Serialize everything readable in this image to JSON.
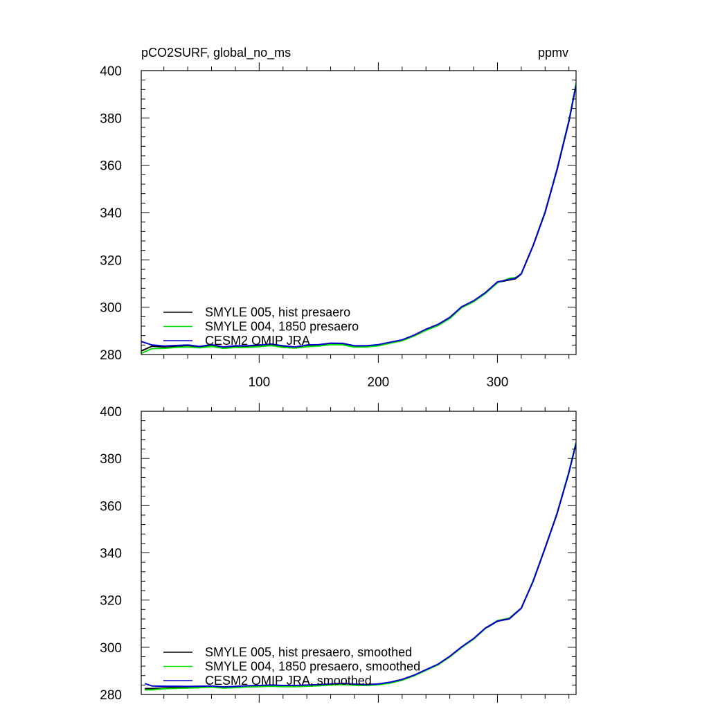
{
  "figure": {
    "title_left": "pCO2SURF, global_no_ms",
    "title_right": "ppmv"
  },
  "chart_data": [
    {
      "type": "line",
      "title": "pCO2SURF, global_no_ms",
      "units": "ppmv",
      "xlabel": "",
      "ylabel": "",
      "xlim": [
        1,
        366
      ],
      "ylim": [
        280,
        400
      ],
      "xticks": [
        100,
        200,
        300
      ],
      "xtick_labels": [
        "100",
        "200",
        "300"
      ],
      "yticks": [
        280,
        300,
        320,
        340,
        360,
        380,
        400
      ],
      "ytick_labels": [
        "280",
        "300",
        "320",
        "340",
        "360",
        "380",
        "400"
      ],
      "legend_position": "bottom-left",
      "x": [
        1,
        10,
        20,
        30,
        40,
        50,
        60,
        70,
        80,
        90,
        100,
        110,
        120,
        130,
        140,
        150,
        160,
        170,
        180,
        190,
        200,
        210,
        220,
        230,
        240,
        250,
        260,
        270,
        280,
        290,
        300,
        310,
        315,
        320,
        330,
        340,
        350,
        360,
        366
      ],
      "series": [
        {
          "name": "SMYLE 005, hist presaero",
          "color": "#000000",
          "values": [
            281.5,
            283.5,
            283.2,
            283.5,
            283.8,
            283.2,
            284.0,
            283.0,
            283.5,
            283.5,
            283.8,
            284.2,
            283.5,
            283.0,
            283.8,
            284.0,
            284.6,
            284.5,
            283.5,
            283.5,
            284.0,
            285.0,
            286.0,
            288.0,
            290.5,
            292.5,
            295.5,
            300.0,
            302.5,
            306.0,
            310.5,
            311.5,
            312.0,
            314.0,
            326.0,
            340.0,
            358.0,
            378.5,
            394.0
          ]
        },
        {
          "name": "SMYLE 004, 1850 presaero",
          "color": "#00dd00",
          "values": [
            280.5,
            282.5,
            282.6,
            283.0,
            283.2,
            282.8,
            283.4,
            282.6,
            283.0,
            283.0,
            283.3,
            283.8,
            283.0,
            282.7,
            283.3,
            283.6,
            284.2,
            284.1,
            283.1,
            283.2,
            283.7,
            284.8,
            285.8,
            287.8,
            290.2,
            292.2,
            295.2,
            299.8,
            302.3,
            305.8,
            310.3,
            312.2,
            312.5,
            314.0,
            326.2,
            340.3,
            358.4,
            379.0,
            394.6
          ]
        },
        {
          "name": "CESM2 OMIP JRA",
          "color": "#0000cc",
          "values": [
            285.5,
            284.0,
            283.6,
            283.8,
            284.0,
            283.4,
            284.2,
            283.2,
            283.7,
            283.7,
            284.0,
            284.4,
            283.7,
            283.2,
            284.0,
            284.2,
            284.8,
            284.7,
            283.7,
            283.7,
            284.2,
            285.2,
            286.2,
            288.2,
            290.7,
            292.7,
            295.7,
            300.2,
            302.7,
            306.2,
            310.7,
            311.7,
            312.2,
            314.2,
            326.2,
            340.2,
            358.2,
            378.7,
            393.8
          ]
        }
      ]
    },
    {
      "type": "line",
      "title": "",
      "units": "",
      "xlabel": "",
      "ylabel": "",
      "xlim": [
        1,
        366
      ],
      "ylim": [
        280,
        400
      ],
      "xticks": [
        100,
        200,
        300
      ],
      "xtick_labels": [],
      "yticks": [
        280,
        300,
        320,
        340,
        360,
        380,
        400
      ],
      "ytick_labels": [
        "280",
        "300",
        "320",
        "340",
        "360",
        "380",
        "400"
      ],
      "legend_position": "bottom-left",
      "x": [
        4,
        10,
        20,
        30,
        40,
        50,
        60,
        70,
        80,
        90,
        100,
        110,
        120,
        130,
        140,
        150,
        160,
        170,
        180,
        190,
        200,
        210,
        220,
        230,
        240,
        250,
        260,
        270,
        280,
        290,
        300,
        310,
        320,
        330,
        340,
        350,
        360,
        366
      ],
      "series": [
        {
          "name": "SMYLE 005, hist presaero, smoothed",
          "color": "#000000",
          "values": [
            282.5,
            282.5,
            282.8,
            283.0,
            283.0,
            283.2,
            283.4,
            283.0,
            283.2,
            283.5,
            283.6,
            283.8,
            283.6,
            283.6,
            283.8,
            284.0,
            284.3,
            284.5,
            284.2,
            284.0,
            284.3,
            285.0,
            286.2,
            288.0,
            290.3,
            292.6,
            296.0,
            300.0,
            303.5,
            308.0,
            311.0,
            312.0,
            316.5,
            328.0,
            342.0,
            356.5,
            374.0,
            386.5
          ]
        },
        {
          "name": "SMYLE 004, 1850 presaero, smoothed",
          "color": "#00dd00",
          "values": [
            281.9,
            282.0,
            282.4,
            282.6,
            282.7,
            282.9,
            283.1,
            282.7,
            282.9,
            283.2,
            283.3,
            283.5,
            283.3,
            283.3,
            283.5,
            283.7,
            284.0,
            284.2,
            283.9,
            283.8,
            284.1,
            284.8,
            286.0,
            287.9,
            290.2,
            292.5,
            295.9,
            299.9,
            303.4,
            308.0,
            311.3,
            312.4,
            316.6,
            328.2,
            342.3,
            356.8,
            374.4,
            387.0
          ]
        },
        {
          "name": "CESM2 OMIP JRA, smoothed",
          "color": "#0000cc",
          "values": [
            284.6,
            283.6,
            283.5,
            283.5,
            283.4,
            283.5,
            283.6,
            283.2,
            283.4,
            283.7,
            283.8,
            284.0,
            283.8,
            283.8,
            284.0,
            284.2,
            284.5,
            284.7,
            284.4,
            284.2,
            284.5,
            285.2,
            286.4,
            288.2,
            290.5,
            292.8,
            296.2,
            300.2,
            303.7,
            308.2,
            311.1,
            312.1,
            316.6,
            328.1,
            342.1,
            356.6,
            374.1,
            386.3
          ]
        }
      ]
    }
  ]
}
